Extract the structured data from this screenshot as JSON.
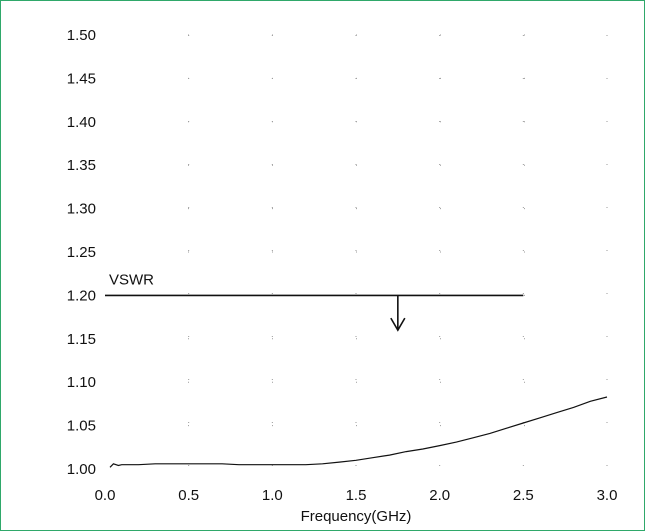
{
  "colors": {
    "frame": "#2fa86a",
    "line": "#111111",
    "grid_dot": "#9a9a9a"
  },
  "chart_data": {
    "type": "line",
    "title": "",
    "xlabel": "Frequency(GHz)",
    "ylabel": "",
    "xlim": [
      0.0,
      3.0
    ],
    "ylim": [
      1.0,
      1.5
    ],
    "grid": "dotted",
    "x_ticks": [
      "0.0",
      "0.5",
      "1.0",
      "1.5",
      "2.0",
      "2.5",
      "3.0"
    ],
    "y_ticks": [
      "1.00",
      "1.05",
      "1.10",
      "1.15",
      "1.20",
      "1.25",
      "1.30",
      "1.35",
      "1.40",
      "1.45",
      "1.50"
    ],
    "series": [
      {
        "x": [
          0.03,
          0.05,
          0.08,
          0.1,
          0.2,
          0.3,
          0.4,
          0.5,
          0.6,
          0.7,
          0.8,
          0.9,
          1.0,
          1.1,
          1.2,
          1.3,
          1.4,
          1.5,
          1.6,
          1.7,
          1.8,
          1.9,
          2.0,
          2.1,
          2.2,
          2.3,
          2.4,
          2.5,
          2.6,
          2.7,
          2.8,
          2.9,
          3.0
        ],
        "y": [
          1.002,
          1.006,
          1.004,
          1.005,
          1.005,
          1.006,
          1.006,
          1.006,
          1.006,
          1.006,
          1.005,
          1.005,
          1.005,
          1.005,
          1.005,
          1.006,
          1.008,
          1.01,
          1.013,
          1.016,
          1.02,
          1.023,
          1.027,
          1.031,
          1.036,
          1.041,
          1.047,
          1.053,
          1.059,
          1.065,
          1.071,
          1.078,
          1.083
        ]
      }
    ],
    "annotations": [
      {
        "text": "VSWR",
        "line_y": 1.2,
        "line_x_range": [
          0.0,
          2.5
        ],
        "arrow_x": 1.75,
        "arrow_to_y": 1.16
      }
    ]
  }
}
